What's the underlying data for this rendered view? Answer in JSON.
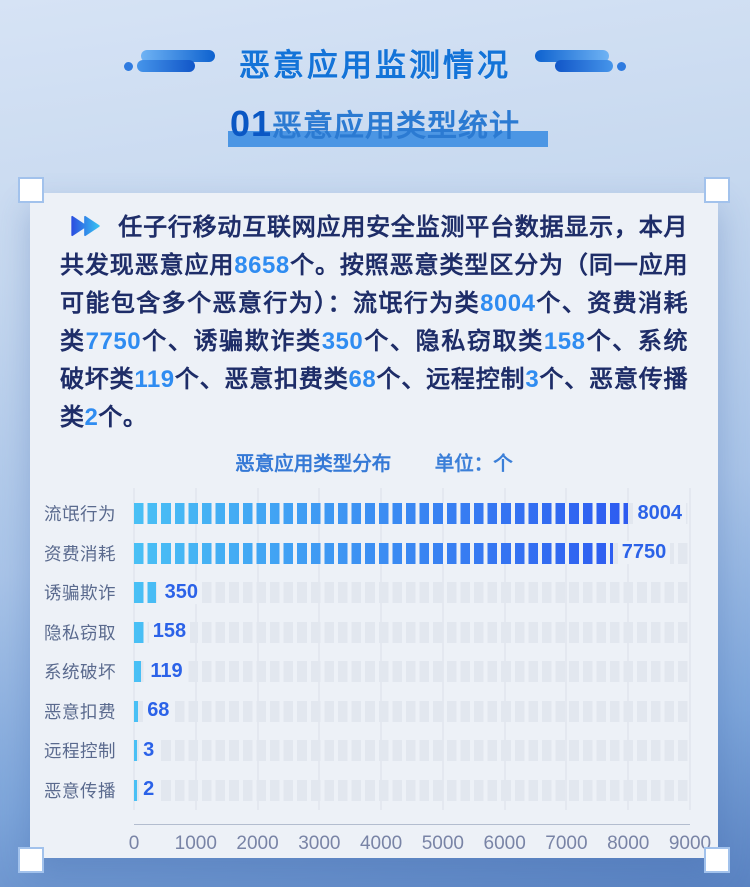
{
  "header": {
    "title": "恶意应用监测情况"
  },
  "section": {
    "number": "01",
    "title": "恶意应用类型统计"
  },
  "intro": {
    "parts": [
      "任子行移动互联网应用安全监测平台数据显示，本月共发现恶意应用",
      "8658",
      "个。按照恶意类型区分为（同一应用可能包含多个恶意行为）：流氓行为类",
      "8004",
      "个、资费消耗类",
      "7750",
      "个、诱骗欺诈类",
      "350",
      "个、隐私窃取类",
      "158",
      "个、系统破坏类",
      "119",
      "个、恶意扣费类",
      "68",
      "个、远程控制",
      "3",
      "个、恶意传播类",
      "2",
      "个。"
    ]
  },
  "chart_data": {
    "type": "bar",
    "orientation": "horizontal",
    "bar_style": "segmented",
    "title": "恶意应用类型分布",
    "unit_label": "单位：个",
    "categories": [
      "流氓行为",
      "资费消耗",
      "诱骗欺诈",
      "隐私窃取",
      "系统破坏",
      "恶意扣费",
      "远程控制",
      "恶意传播"
    ],
    "values": [
      8004,
      7750,
      350,
      158,
      119,
      68,
      3,
      2
    ],
    "xlim": [
      0,
      9000
    ],
    "ticks": [
      "0",
      "1000",
      "2000",
      "3000",
      "4000",
      "5000",
      "6000",
      "7000",
      "8000",
      "9000"
    ],
    "grid": "vertical",
    "colors": {
      "fill_start": "#49c0f5",
      "fill_end": "#2a4ef0",
      "track": "#e2e7ef",
      "value_label": "#2b62e8"
    }
  }
}
